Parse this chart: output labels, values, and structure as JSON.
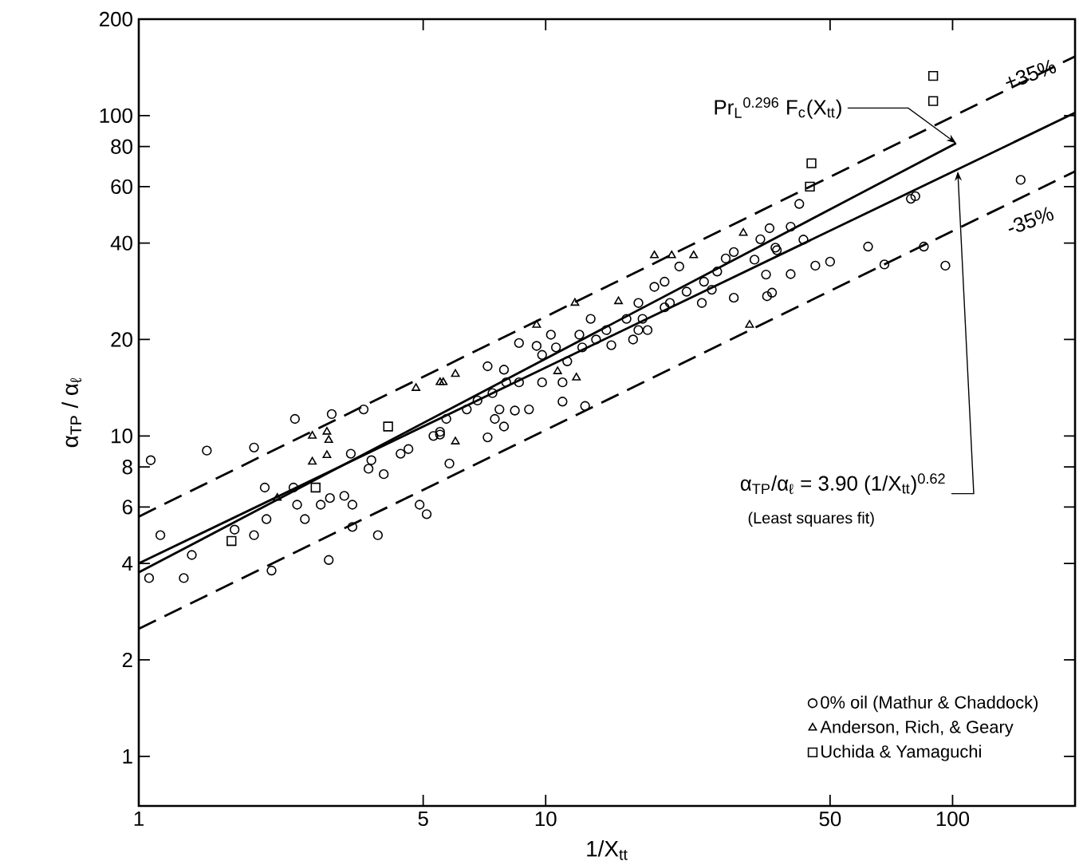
{
  "chart_data": {
    "type": "scatter",
    "xlabel": "1/X$_{tt}$",
    "ylabel": "α$_{TP}$ / α$_{ℓ}$",
    "xlim": [
      1,
      200
    ],
    "ylim": [
      0.7,
      200
    ],
    "xticks": [
      1,
      5,
      10,
      50,
      100
    ],
    "yticks": [
      1,
      2,
      4,
      6,
      8,
      10,
      20,
      40,
      60,
      80,
      100,
      200
    ],
    "log": "xy",
    "legend": "bottom right",
    "series": [
      {
        "name": "0% oil (Mathur & Chaddock)",
        "marker": "circle",
        "color": "#000000",
        "x": [
          1.07,
          1.13,
          1.06,
          1.29,
          1.35,
          1.47,
          1.92,
          1.92,
          2.12,
          2.42,
          2.98,
          2.93,
          3.32,
          3.57,
          2.04,
          2.06,
          2.45,
          2.4,
          2.56,
          2.8,
          2.95,
          3.2,
          3.35,
          3.35,
          3.87,
          3.67,
          3.73,
          4.0,
          4.4,
          4.6,
          4.9,
          5.1,
          5.3,
          5.5,
          1.72,
          5.8,
          7.2,
          8.6,
          11.0,
          12.5,
          17.8,
          16.4,
          29,
          35,
          35.5,
          6.4,
          6.8,
          7.4,
          7.9,
          8.0,
          8.6,
          9.1,
          9.5,
          9.8,
          10.3,
          10.6,
          11.3,
          12.3,
          12.9,
          13.3,
          14.1,
          14.5,
          15.8,
          16.9,
          17.3,
          18.5,
          19.6,
          20.2,
          21.3,
          22.2,
          24.2,
          24.5,
          26.4,
          27.7,
          29.0,
          32.6,
          33.7,
          34.8,
          36.7,
          7.5,
          7.7,
          7.2,
          7.9,
          8.4,
          9.8,
          16.9,
          19.6,
          25.6,
          12.1,
          11.0,
          5.5,
          5.7,
          147,
          79,
          81,
          62,
          85,
          68,
          96,
          50,
          46,
          40,
          42,
          40,
          43,
          37,
          36
        ],
        "values": [
          8.4,
          4.9,
          3.6,
          3.6,
          4.25,
          9.0,
          9.2,
          4.9,
          3.8,
          11.3,
          11.7,
          4.1,
          8.8,
          12.1,
          6.9,
          5.5,
          6.1,
          6.9,
          5.5,
          6.1,
          6.4,
          6.5,
          6.1,
          5.2,
          4.9,
          7.9,
          8.4,
          7.6,
          8.8,
          9.1,
          6.1,
          5.7,
          10.0,
          10.3,
          5.1,
          8.2,
          16.5,
          19.5,
          12.8,
          12.4,
          21.4,
          20.0,
          27,
          27.3,
          44.5,
          12.1,
          12.9,
          13.6,
          16.1,
          14.7,
          14.7,
          12.1,
          19.1,
          17.9,
          20.7,
          18.9,
          17.1,
          18.9,
          23.2,
          20.0,
          21.4,
          19.2,
          23.2,
          26.0,
          23.2,
          29.2,
          30.3,
          26.0,
          33.8,
          28.2,
          26.0,
          30.3,
          32.6,
          35.8,
          37.5,
          35.5,
          41.1,
          31.9,
          38.7,
          11.3,
          12.1,
          9.9,
          10.7,
          12.0,
          14.7,
          21.4,
          25.2,
          28.6,
          20.7,
          14.7,
          10.1,
          11.3,
          63,
          55,
          56,
          39,
          39,
          34.3,
          34,
          35,
          34,
          32,
          53,
          45,
          41,
          38,
          28
        ]
      },
      {
        "name": "Anderson, Rich, & Geary",
        "marker": "triangle",
        "color": "#000000",
        "x": [
          2.67,
          2.9,
          2.93,
          2.67,
          2.9,
          2.19,
          4.8,
          5.5,
          30.6,
          18.5,
          20.4,
          23.1,
          31.7,
          11.8,
          15.1,
          9.5,
          11.9,
          6.0,
          5.6,
          6.0,
          10.7
        ],
        "values": [
          10.0,
          10.3,
          9.7,
          8.3,
          8.7,
          6.4,
          14.1,
          14.7,
          43,
          36.6,
          36.6,
          36.6,
          22.2,
          26,
          26.3,
          22.2,
          15.2,
          15.6,
          14.7,
          9.6,
          15.9
        ]
      },
      {
        "name": "Uchida & Yamaguchi",
        "marker": "square",
        "color": "#000000",
        "x": [
          1.69,
          4.1,
          2.72,
          89.6,
          89.6,
          45,
          44.6
        ],
        "values": [
          4.7,
          10.7,
          6.9,
          133,
          111,
          71,
          60
        ]
      },
      {
        "type": "line",
        "marker": "none",
        "line_style": "solid",
        "color": "#000000",
        "x": [
          1,
          200
        ],
        "values": [
          4.0,
          102
        ]
      },
      {
        "type": "line",
        "marker": "none",
        "line_style": "solid",
        "color": "#000000",
        "x": [
          1,
          102
        ],
        "values": [
          3.75,
          82
        ]
      },
      {
        "type": "line",
        "marker": "none",
        "line_style": "dashed",
        "color": "#000000",
        "x": [
          1,
          200
        ],
        "values": [
          5.6,
          153
        ]
      },
      {
        "type": "line",
        "marker": "none",
        "line_style": "dashed",
        "color": "#000000",
        "x": [
          1,
          200
        ],
        "values": [
          2.5,
          67
        ]
      }
    ],
    "annotations": [
      "+35%",
      "-35%",
      {
        "text": "Pr$_{L}$$^{0.296}$ F$_{c}$(X$_{tt}$)",
        "x": 102,
        "y": 82
      },
      {
        "text": "α$_{TP}$/α$_{ℓ}$ = 3.90 (1/X$_{tt}$)$^{0.62}$",
        "x": 103,
        "y": 67
      },
      "(Least squares fit)"
    ]
  }
}
